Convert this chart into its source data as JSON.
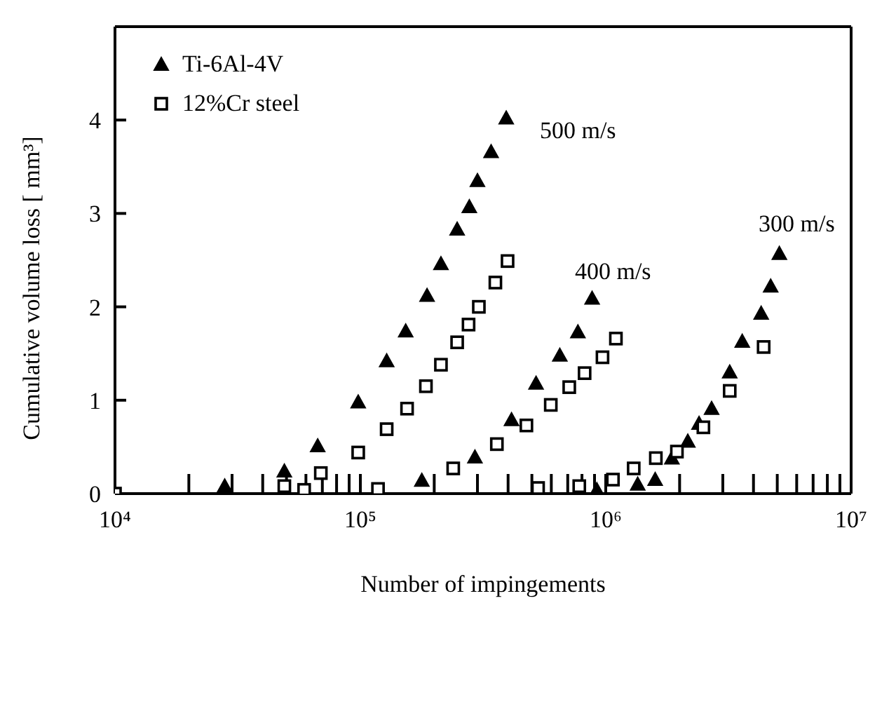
{
  "chart_data": {
    "type": "scatter",
    "xlabel": "Number of impingements",
    "ylabel": "Cumulative volume loss [ mm³]",
    "log": "x",
    "xlim": [
      10000,
      10000000
    ],
    "ylim": [
      0,
      5
    ],
    "xticks": [
      {
        "value": 10000,
        "label": "10⁴"
      },
      {
        "value": 20000,
        "label": null
      },
      {
        "value": 30000,
        "label": null
      },
      {
        "value": 40000,
        "label": null
      },
      {
        "value": 50000,
        "label": null
      },
      {
        "value": 60000,
        "label": null
      },
      {
        "value": 70000,
        "label": null
      },
      {
        "value": 80000,
        "label": null
      },
      {
        "value": 90000,
        "label": null
      },
      {
        "value": 100000,
        "label": "10⁵"
      },
      {
        "value": 200000,
        "label": null
      },
      {
        "value": 300000,
        "label": null
      },
      {
        "value": 400000,
        "label": null
      },
      {
        "value": 500000,
        "label": null
      },
      {
        "value": 600000,
        "label": null
      },
      {
        "value": 700000,
        "label": null
      },
      {
        "value": 800000,
        "label": null
      },
      {
        "value": 900000,
        "label": null
      },
      {
        "value": 1000000,
        "label": "10⁶"
      },
      {
        "value": 2000000,
        "label": null
      },
      {
        "value": 3000000,
        "label": null
      },
      {
        "value": 4000000,
        "label": null
      },
      {
        "value": 5000000,
        "label": null
      },
      {
        "value": 6000000,
        "label": null
      },
      {
        "value": 7000000,
        "label": null
      },
      {
        "value": 8000000,
        "label": null
      },
      {
        "value": 9000000,
        "label": null
      },
      {
        "value": 10000000,
        "label": "10⁷"
      }
    ],
    "yticks": [
      0,
      1,
      2,
      3,
      4
    ],
    "legend": "top left",
    "series": [
      {
        "name": "Ti-6Al-4V",
        "color": "#000000",
        "marker": "triangle",
        "x": [
          28000,
          49000,
          67000,
          98000,
          128000,
          153000,
          187000,
          213000,
          248000,
          278000,
          300000,
          341000,
          393000,
          178000,
          293000,
          413000,
          520000,
          650000,
          770000,
          880000,
          920000,
          1350000,
          1590000,
          1860000,
          2160000,
          2400000,
          2700000,
          3200000,
          3600000,
          4300000,
          4700000,
          5100000
        ],
        "values": [
          0.08,
          0.24,
          0.51,
          0.98,
          1.42,
          1.74,
          2.12,
          2.46,
          2.83,
          3.07,
          3.35,
          3.66,
          4.02,
          0.14,
          0.39,
          0.79,
          1.18,
          1.48,
          1.73,
          2.09,
          0.04,
          0.1,
          0.15,
          0.38,
          0.56,
          0.75,
          0.91,
          1.3,
          1.63,
          1.93,
          2.22,
          2.57
        ]
      },
      {
        "name": "12%Cr steel",
        "color": "#000000",
        "marker": "square",
        "x": [
          10000,
          49000,
          59000,
          69000,
          98000,
          118000,
          128000,
          155000,
          185000,
          213000,
          248000,
          276000,
          304000,
          355000,
          398000,
          239000,
          360000,
          475000,
          597000,
          710000,
          820000,
          970000,
          1100000,
          530000,
          780000,
          1070000,
          1300000,
          1600000,
          1950000,
          2500000,
          3200000,
          4400000
        ],
        "values": [
          0,
          0.08,
          0.04,
          0.22,
          0.44,
          0.05,
          0.69,
          0.91,
          1.15,
          1.38,
          1.62,
          1.81,
          2.0,
          2.26,
          2.49,
          0.27,
          0.53,
          0.73,
          0.95,
          1.14,
          1.29,
          1.46,
          1.66,
          0.06,
          0.08,
          0.15,
          0.27,
          0.38,
          0.45,
          0.71,
          1.1,
          1.57
        ]
      }
    ],
    "annotations": [
      "500 m/s",
      "400 m/s",
      "300 m/s"
    ]
  }
}
